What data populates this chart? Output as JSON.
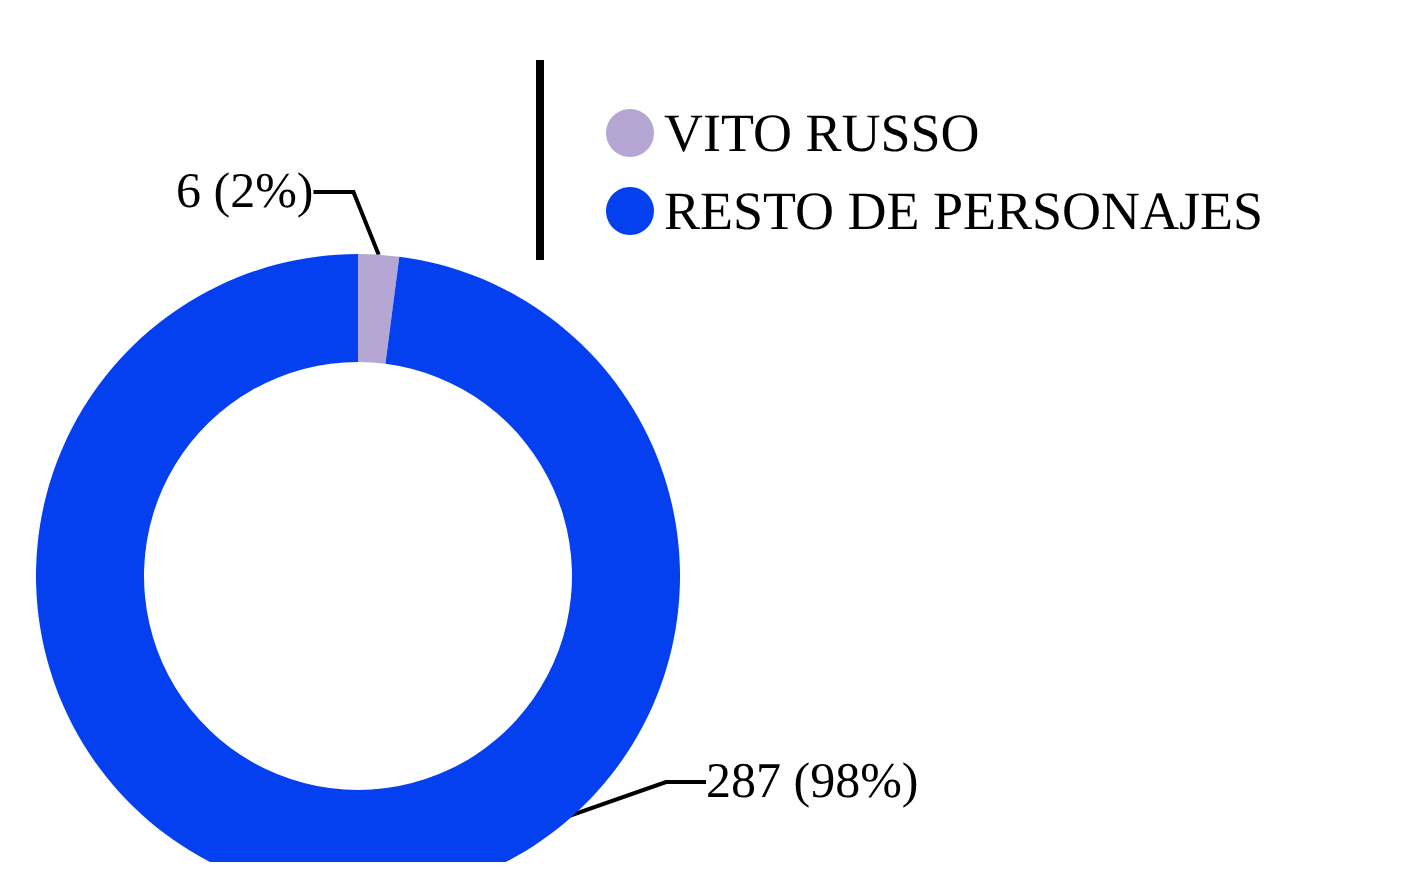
{
  "chart_data": {
    "type": "donut",
    "categories": [
      "VITO RUSSO",
      "RESTO DE PERSONAJES"
    ],
    "values": [
      6,
      287
    ],
    "colors": [
      "#b6a6d4",
      "#0440f0"
    ],
    "value_labels": [
      "6 (2%)",
      "287 (98%)"
    ],
    "legend": "top right"
  }
}
